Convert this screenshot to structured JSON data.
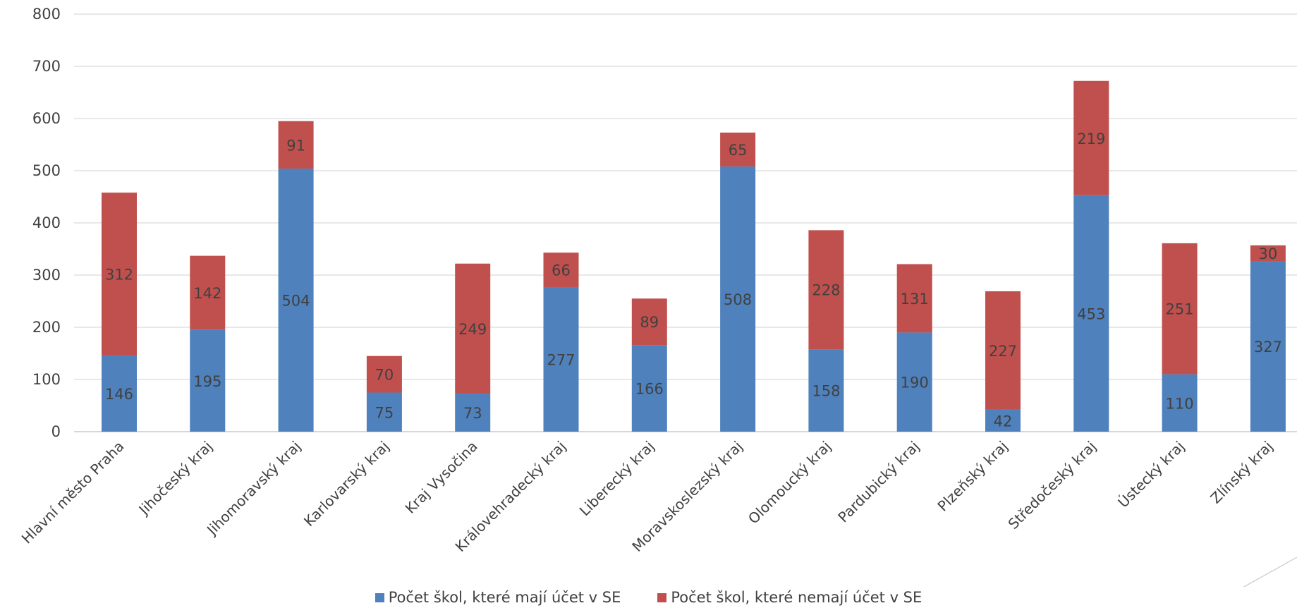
{
  "chart_data": {
    "type": "bar",
    "stacked": true,
    "title": "",
    "xlabel": "",
    "ylabel": "",
    "ylim": [
      0,
      800
    ],
    "yticks": [
      0,
      100,
      200,
      300,
      400,
      500,
      600,
      700,
      800
    ],
    "grid": true,
    "legend_position": "bottom",
    "categories": [
      "Hlavní město Praha",
      "Jihočeský kraj",
      "Jihomoravský kraj",
      "Karlovarský kraj",
      "Kraj Vysočina",
      "Královehradecký kraj",
      "Liberecký kraj",
      "Moravskoslezský kraj",
      "Olomoucký kraj",
      "Pardubický kraj",
      "Plzeňský kraj",
      "Středočeský kraj",
      "Ústecký kraj",
      "Zlínský kraj"
    ],
    "series": [
      {
        "name": "Počet škol, které mají účet v SE",
        "color": "#4F81BD",
        "values": [
          146,
          195,
          504,
          75,
          73,
          277,
          166,
          508,
          158,
          190,
          42,
          453,
          110,
          327
        ]
      },
      {
        "name": "Počet škol, které nemají účet v SE",
        "color": "#C0504D",
        "values": [
          312,
          142,
          91,
          70,
          249,
          66,
          89,
          65,
          228,
          131,
          227,
          219,
          251,
          30
        ]
      }
    ]
  }
}
